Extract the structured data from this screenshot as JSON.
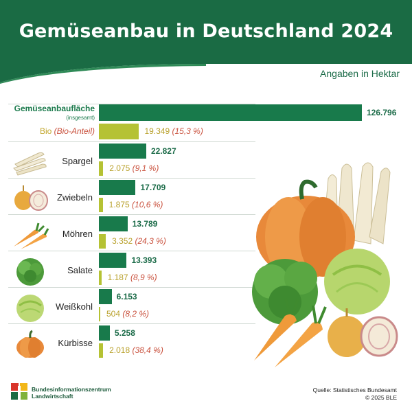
{
  "header": {
    "title": "Gemüseanbau in Deutschland 2024",
    "unit": "Angaben in Hektar"
  },
  "chart_data": {
    "type": "bar",
    "xlim": [
      0,
      126796
    ],
    "total": {
      "label": "Gemüseanbaufläche",
      "sublabel": "(insgesamt)",
      "value": 126796,
      "value_label": "126.796",
      "bio_label": "Bio",
      "bio_label_note": "(Bio-Anteil)",
      "bio_value": 19349,
      "bio_value_label": "19.349",
      "bio_share": "(15,3 %)"
    },
    "categories": [
      "Spargel",
      "Zwiebeln",
      "Möhren",
      "Salate",
      "Weißkohl",
      "Kürbisse"
    ],
    "series": [
      {
        "name": "Gemüseanbaufläche",
        "values": [
          22827,
          17709,
          13789,
          13393,
          6153,
          5258
        ],
        "labels": [
          "22.827",
          "17.709",
          "13.789",
          "13.393",
          "6.153",
          "5.258"
        ]
      },
      {
        "name": "Bio",
        "values": [
          2075,
          1875,
          3352,
          1187,
          504,
          2018
        ],
        "labels": [
          "2.075",
          "1.875",
          "3.352",
          "1.187",
          "504",
          "2.018"
        ],
        "shares": [
          "(9,1 %)",
          "(10,6 %)",
          "(24,3 %)",
          "(8,9 %)",
          "(8,2 %)",
          "(38,4 %)"
        ]
      }
    ]
  },
  "icons": [
    "asparagus-icon",
    "onion-icon",
    "carrot-icon",
    "lettuce-icon",
    "cabbage-icon",
    "pumpkin-icon"
  ],
  "colors": {
    "total_bar": "#187a4b",
    "bio_bar": "#b5c234",
    "header": "#1a6b44",
    "bio_text": "#c2a62c",
    "share_text": "#c9503c"
  },
  "footer": {
    "logo_line1": "Bundesinformationszentrum",
    "logo_line2": "Landwirtschaft",
    "source": "Quelle: Statistisches Bundesamt",
    "copyright": "© 2025 BLE"
  },
  "illustration_copyright": "© BLE"
}
